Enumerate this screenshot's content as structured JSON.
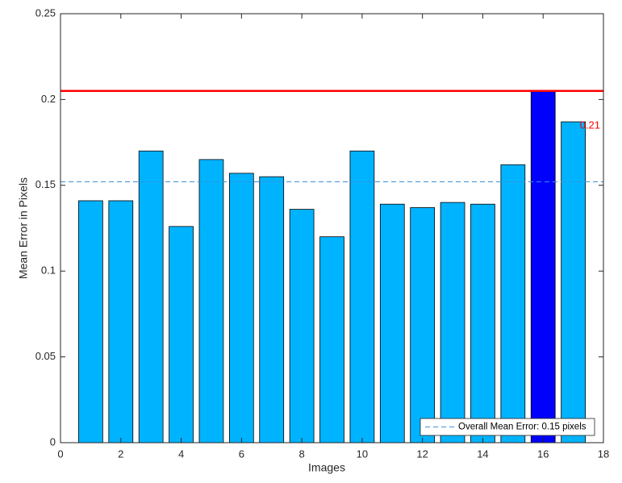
{
  "chart_data": {
    "type": "bar",
    "xlabel": "Images",
    "ylabel": "Mean Error in Pixels",
    "x": [
      1,
      2,
      3,
      4,
      5,
      6,
      7,
      8,
      9,
      10,
      11,
      12,
      13,
      14,
      15,
      16,
      17
    ],
    "values": [
      0.141,
      0.141,
      0.17,
      0.126,
      0.165,
      0.157,
      0.155,
      0.136,
      0.12,
      0.17,
      0.139,
      0.137,
      0.14,
      0.139,
      0.162,
      0.205,
      0.187
    ],
    "colors": [
      "#00b3ff",
      "#00b3ff",
      "#00b3ff",
      "#00b3ff",
      "#00b3ff",
      "#00b3ff",
      "#00b3ff",
      "#00b3ff",
      "#00b3ff",
      "#00b3ff",
      "#00b3ff",
      "#00b3ff",
      "#00b3ff",
      "#00b3ff",
      "#00b3ff",
      "#0000ff",
      "#00b3ff"
    ],
    "max_line": {
      "value": 0.205,
      "label": "0.21",
      "color": "#ff0000"
    },
    "mean_line": {
      "value": 0.152,
      "label": "Overall Mean Error: 0.15 pixels",
      "color": "#3c8fd8"
    },
    "xlim": [
      0,
      18
    ],
    "xticks": [
      0,
      2,
      4,
      6,
      8,
      10,
      12,
      14,
      16,
      18
    ],
    "ylim": [
      0,
      0.25
    ],
    "yticks": [
      0,
      0.05,
      0.1,
      0.15,
      0.2,
      0.25
    ],
    "legend": "lower right"
  }
}
